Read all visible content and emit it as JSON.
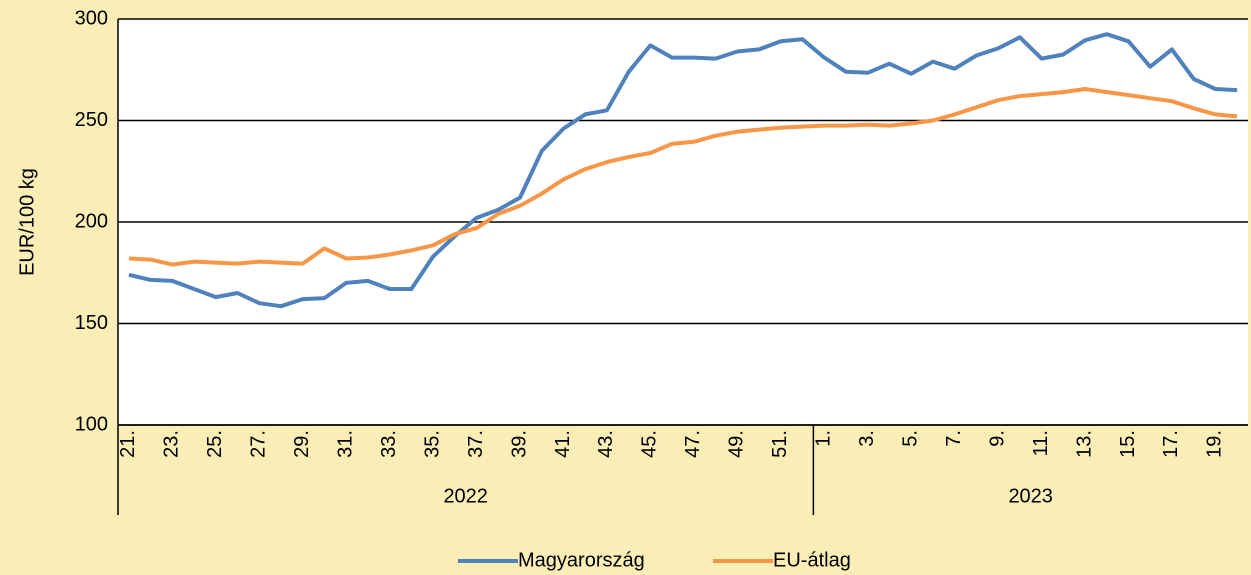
{
  "chart_data": {
    "type": "line",
    "ylabel": "EUR/100 kg",
    "groups": [
      {
        "label": "2022",
        "categories": [
          "21.",
          null,
          "23.",
          null,
          "25.",
          null,
          "27.",
          null,
          "29.",
          null,
          "31.",
          null,
          "33.",
          null,
          "35.",
          null,
          "37.",
          null,
          "39.",
          null,
          "41.",
          null,
          "43.",
          null,
          "45.",
          null,
          "47.",
          null,
          "49.",
          null,
          "51.",
          null
        ]
      },
      {
        "label": "2023",
        "categories": [
          "1.",
          null,
          "3.",
          null,
          "5.",
          null,
          "7.",
          null,
          "9.",
          null,
          "11.",
          null,
          "13.",
          null,
          "15.",
          null,
          "17.",
          null,
          "19.",
          null
        ]
      }
    ],
    "series": [
      {
        "name": "Magyarország",
        "color": "#4f81bd",
        "values": [
          174,
          171.5,
          171,
          167,
          163,
          165,
          160,
          158.5,
          162,
          162.5,
          170,
          171,
          167,
          167,
          183,
          193,
          202,
          206,
          212,
          235,
          246,
          253,
          255,
          274,
          287,
          281,
          281,
          280.5,
          284,
          285,
          289,
          290,
          281,
          274,
          273.5,
          278,
          273,
          279,
          275.5,
          282,
          285.5,
          291,
          280.5,
          282.5,
          289.5,
          292.5,
          289,
          276.5,
          285,
          270.5,
          265.5,
          265
        ]
      },
      {
        "name": "EU-átlag",
        "color": "#f79646",
        "values": [
          182,
          181.5,
          179,
          180.5,
          180,
          179.5,
          180.5,
          180,
          179.5,
          187,
          182,
          182.5,
          184,
          186,
          188.5,
          194,
          197,
          204,
          208,
          214,
          221,
          226,
          229.5,
          232,
          234,
          238.5,
          239.5,
          242.5,
          244.5,
          245.5,
          246.5,
          247,
          247.5,
          247.5,
          248,
          247.5,
          248.5,
          250,
          253,
          256.5,
          260,
          262,
          263,
          264,
          265.5,
          264,
          262.5,
          261,
          259.5,
          256,
          253,
          252
        ]
      }
    ],
    "ylim": [
      100,
      300
    ],
    "yticks": [
      100,
      150,
      200,
      250,
      300
    ],
    "grid": true,
    "legend": "bottom"
  }
}
